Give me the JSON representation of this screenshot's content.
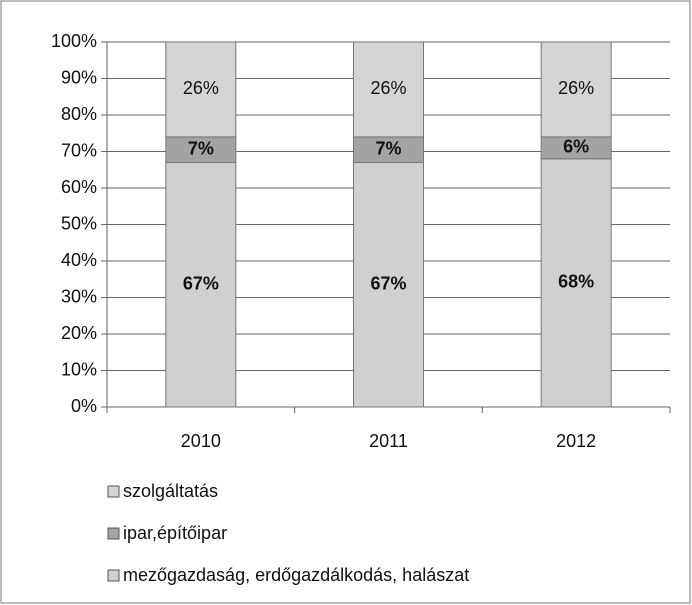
{
  "chart_data": {
    "type": "stacked_bar",
    "categories": [
      "2010",
      "2011",
      "2012"
    ],
    "series": [
      {
        "name": "szolgáltatás",
        "color": "#d4d4d4",
        "values": [
          26,
          26,
          26
        ],
        "value_labels": [
          "26%",
          "26%",
          "26%"
        ]
      },
      {
        "name": "ipar,építőipar",
        "color": "#a3a3a3",
        "values": [
          7,
          7,
          6
        ],
        "value_labels": [
          "7%",
          "7%",
          "6%"
        ]
      },
      {
        "name": "mezőgazdaság, erdőgazdálkodás, halászat",
        "color": "#d0d0d0",
        "values": [
          67,
          67,
          68
        ],
        "value_labels": [
          "67%",
          "67%",
          "68%"
        ]
      }
    ],
    "ylim": [
      0,
      100
    ],
    "yticks": [
      {
        "value": 0,
        "label": "0%"
      },
      {
        "value": 10,
        "label": "10%"
      },
      {
        "value": 20,
        "label": "20%"
      },
      {
        "value": 30,
        "label": "30%"
      },
      {
        "value": 40,
        "label": "40%"
      },
      {
        "value": 50,
        "label": "50%"
      },
      {
        "value": 60,
        "label": "60%"
      },
      {
        "value": 70,
        "label": "70%"
      },
      {
        "value": 80,
        "label": "80%"
      },
      {
        "value": 90,
        "label": "90%"
      },
      {
        "value": 100,
        "label": "100%"
      }
    ],
    "grid": true,
    "legend": "bottom"
  }
}
